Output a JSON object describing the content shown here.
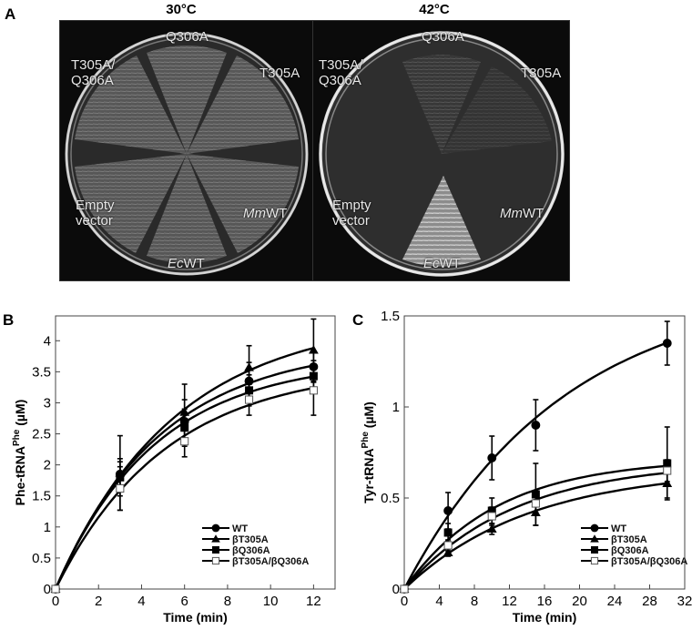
{
  "panel_a": {
    "letter": "A",
    "plates": [
      {
        "temperature": "30°C",
        "labels": {
          "top": "Q306A",
          "top_left_1": "T305A/",
          "top_left_2": "Q306A",
          "top_right": "T305A",
          "bottom_left_1": "Empty",
          "bottom_left_2": "vector",
          "bottom_right_italic": "Mm",
          "bottom_right_rest": "WT",
          "bottom_italic": "Ec",
          "bottom_rest": "WT"
        }
      },
      {
        "temperature": "42°C",
        "labels": {
          "top": "Q306A",
          "top_left_1": "T305A/",
          "top_left_2": "Q306A",
          "top_right": "T305A",
          "bottom_left_1": "Empty",
          "bottom_left_2": "vector",
          "bottom_right_italic": "Mm",
          "bottom_right_rest": "WT",
          "bottom_italic": "Ec",
          "bottom_rest": "WT"
        }
      }
    ]
  },
  "panel_b": {
    "letter": "B"
  },
  "panel_c": {
    "letter": "C"
  },
  "chart_data": [
    {
      "panel": "B",
      "type": "scatter",
      "title": "",
      "xlabel": "Time (min)",
      "ylabel": "Phe-tRNA^Phe (µM)",
      "xlim": [
        0,
        13
      ],
      "ylim": [
        0,
        4.4
      ],
      "xticks": [
        0,
        2,
        4,
        6,
        8,
        10,
        12
      ],
      "yticks": [
        0,
        0.5,
        1,
        1.5,
        2,
        2.5,
        3,
        3.5,
        4
      ],
      "grid": false,
      "legend_position": "lower right",
      "x": [
        0,
        3,
        6,
        9,
        12
      ],
      "series": [
        {
          "name": "WT",
          "marker": "filled-circle",
          "values": [
            0,
            1.85,
            2.7,
            3.35,
            3.58
          ],
          "error": [
            0,
            0.2,
            0.35,
            0.3,
            0.25
          ]
        },
        {
          "name": "βT305A",
          "marker": "filled-triangle",
          "values": [
            0,
            1.87,
            2.85,
            3.57,
            3.85
          ],
          "error": [
            0,
            0.6,
            0.45,
            0.35,
            0.5
          ]
        },
        {
          "name": "βQ306A",
          "marker": "filled-square",
          "values": [
            0,
            1.8,
            2.6,
            3.2,
            3.43
          ],
          "error": [
            0,
            0.3,
            0.3,
            0.25,
            0.25
          ]
        },
        {
          "name": "βT305A/βQ306A",
          "marker": "open-square",
          "values": [
            0,
            1.62,
            2.38,
            3.05,
            3.2
          ],
          "error": [
            0,
            0.35,
            0.25,
            0.25,
            0.4
          ]
        }
      ]
    },
    {
      "panel": "C",
      "type": "scatter",
      "title": "",
      "xlabel": "Time (min)",
      "ylabel": "Tyr-tRNA^Phe (µM)",
      "xlim": [
        0,
        32
      ],
      "ylim": [
        0,
        1.5
      ],
      "xticks": [
        0,
        4,
        8,
        12,
        16,
        20,
        24,
        28,
        32
      ],
      "yticks": [
        0,
        0.5,
        1,
        1.5
      ],
      "grid": false,
      "legend_position": "lower right",
      "x": [
        0,
        5,
        10,
        15,
        30
      ],
      "series": [
        {
          "name": "WT",
          "marker": "filled-circle",
          "values": [
            0,
            0.43,
            0.72,
            0.9,
            1.35
          ],
          "error": [
            0,
            0.1,
            0.12,
            0.14,
            0.12
          ]
        },
        {
          "name": "βT305A",
          "marker": "filled-triangle",
          "values": [
            0,
            0.2,
            0.33,
            0.42,
            0.58
          ],
          "error": [
            0,
            0.02,
            0.03,
            0.07,
            0.08
          ]
        },
        {
          "name": "βQ306A",
          "marker": "filled-square",
          "values": [
            0,
            0.31,
            0.43,
            0.52,
            0.69
          ],
          "error": [
            0,
            0.05,
            0.07,
            0.17,
            0.2
          ]
        },
        {
          "name": "βT305A/βQ306A",
          "marker": "open-square",
          "values": [
            0,
            0.24,
            0.4,
            0.47,
            0.65
          ],
          "error": [
            0,
            0.03,
            0.05,
            0.05,
            0.06
          ]
        }
      ]
    }
  ]
}
